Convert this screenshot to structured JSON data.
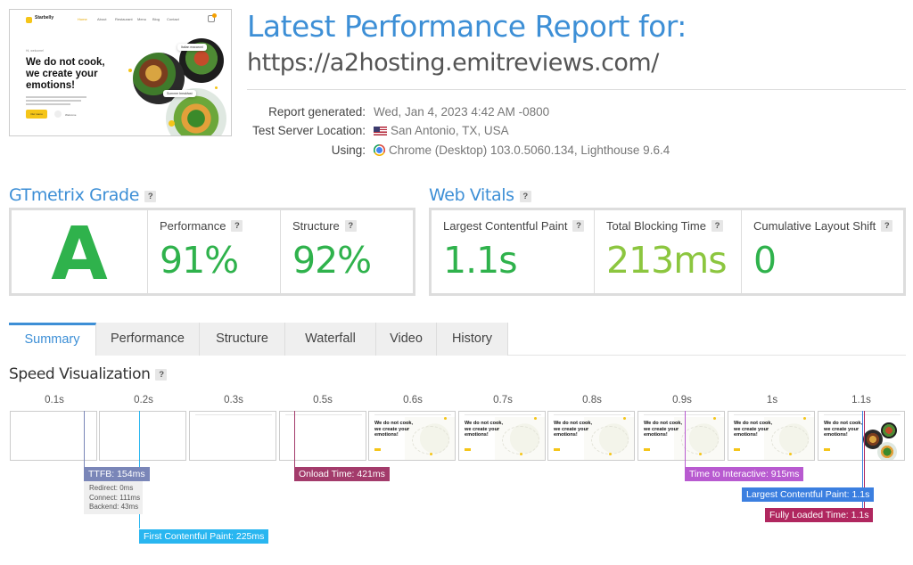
{
  "thumbnail": {
    "logo_text": "Starbelly",
    "nav": [
      "Home",
      "About",
      "Restaurant",
      "Menu",
      "Blog",
      "Contact"
    ],
    "tagline": "Hi, welcome!",
    "hero_line1": "We do not cook,",
    "hero_line2": "we create your",
    "hero_line3": "emotions!",
    "cta": "Our menu",
    "cta2": "Welcome",
    "bubble1": "Italian macaroni",
    "bubble2": "Summer breakfast"
  },
  "header": {
    "title": "Latest Performance Report for:",
    "url": "https://a2hosting.emitreviews.com/"
  },
  "meta": [
    {
      "label": "Report generated:",
      "value": "Wed, Jan 4, 2023 4:42 AM -0800",
      "icon": ""
    },
    {
      "label": "Test Server Location:",
      "value": "San Antonio, TX, USA",
      "icon": "us-flag-icon"
    },
    {
      "label": "Using:",
      "value": "Chrome (Desktop) 103.0.5060.134, Lighthouse 9.6.4",
      "icon": "chrome-icon"
    }
  ],
  "grade": {
    "heading": "GTmetrix Grade",
    "help": "?",
    "letter": "A",
    "letter_color": "#2fb24c",
    "performance_label": "Performance",
    "performance_value": "91%",
    "structure_label": "Structure",
    "structure_value": "92%"
  },
  "vitals": {
    "heading": "Web Vitals",
    "help": "?",
    "lcp_label": "Largest Contentful Paint",
    "lcp_value": "1.1s",
    "tbt_label": "Total Blocking Time",
    "tbt_value": "213ms",
    "cls_label": "Cumulative Layout Shift",
    "cls_value": "0",
    "good_color": "#2fb24c",
    "ok_color": "#8cc63f"
  },
  "tabs": [
    "Summary",
    "Performance",
    "Structure",
    "Waterfall",
    "Video",
    "History"
  ],
  "speed": {
    "heading": "Speed Visualization",
    "help": "?",
    "times": [
      "0.1s",
      "0.2s",
      "0.3s",
      "0.5s",
      "0.6s",
      "0.7s",
      "0.8s",
      "0.9s",
      "1s",
      "1.1s"
    ],
    "markers": {
      "ttfb": "TTFB: 154ms",
      "redirect": "Redirect: 0ms",
      "connect": "Connect: 111ms",
      "backend": "Backend: 43ms",
      "fcp": "First Contentful Paint: 225ms",
      "onload": "Onload Time: 421ms",
      "tti": "Time to Interactive: 915ms",
      "lcp": "Largest Contentful Paint: 1.1s",
      "fully_loaded": "Fully Loaded Time: 1.1s"
    },
    "colors": {
      "ttfb": "#7a86b8",
      "fcp": "#29b6f0",
      "onload": "#a33b6b",
      "tti": "#b85ad0",
      "lcp": "#3b7fe0",
      "fully_loaded": "#b0275f"
    }
  }
}
